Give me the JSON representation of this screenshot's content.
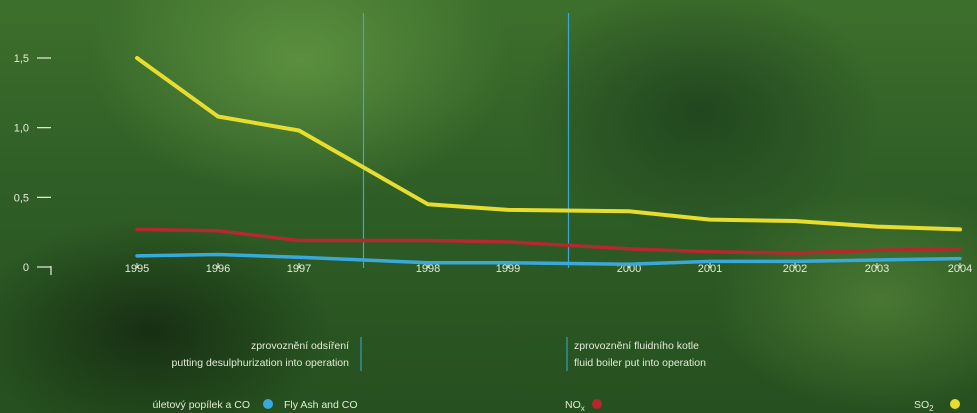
{
  "chart_data": {
    "type": "line",
    "x": [
      "1995",
      "1996",
      "1997",
      "1998",
      "1999",
      "2000",
      "2001",
      "2002",
      "2003",
      "2004"
    ],
    "y_ticks": [
      "0",
      "0,5",
      "1,0",
      "1,5"
    ],
    "ylim": [
      0,
      1.5
    ],
    "grid": false,
    "series": [
      {
        "name": "SO2",
        "color": "#e6dd2e",
        "values": [
          1.5,
          1.08,
          0.98,
          0.45,
          0.41,
          0.4,
          0.34,
          0.33,
          0.29,
          0.27
        ]
      },
      {
        "name": "NOx",
        "color": "#b5282e",
        "values": [
          0.27,
          0.26,
          0.19,
          0.19,
          0.18,
          0.13,
          0.11,
          0.1,
          0.12,
          0.13
        ]
      },
      {
        "name": "Fly Ash and CO",
        "color": "#39a9dc",
        "values": [
          0.08,
          0.09,
          0.07,
          0.03,
          0.03,
          0.02,
          0.04,
          0.04,
          0.05,
          0.06
        ]
      }
    ],
    "events": [
      {
        "x_between": [
          "1997",
          "1998"
        ],
        "fraction": 0.5,
        "label_cs": "zprovoznění odsíření",
        "label_en": "putting desulphurization into operation"
      },
      {
        "x_between": [
          "1999",
          "2000"
        ],
        "fraction": 0.5,
        "label_cs": "zprovoznění fluidního kotle",
        "label_en": "fluid boiler put into operation"
      }
    ],
    "legend": {
      "ash": {
        "label_cs": "úletový popílek a CO",
        "label_en": "Fly Ash and CO",
        "color": "#39a9dc"
      },
      "nox": {
        "label_main": "NO",
        "label_sub": "x",
        "color": "#b5282e"
      },
      "so2": {
        "label_main": "SO",
        "label_sub": "2",
        "color": "#e6dd2e"
      }
    }
  }
}
